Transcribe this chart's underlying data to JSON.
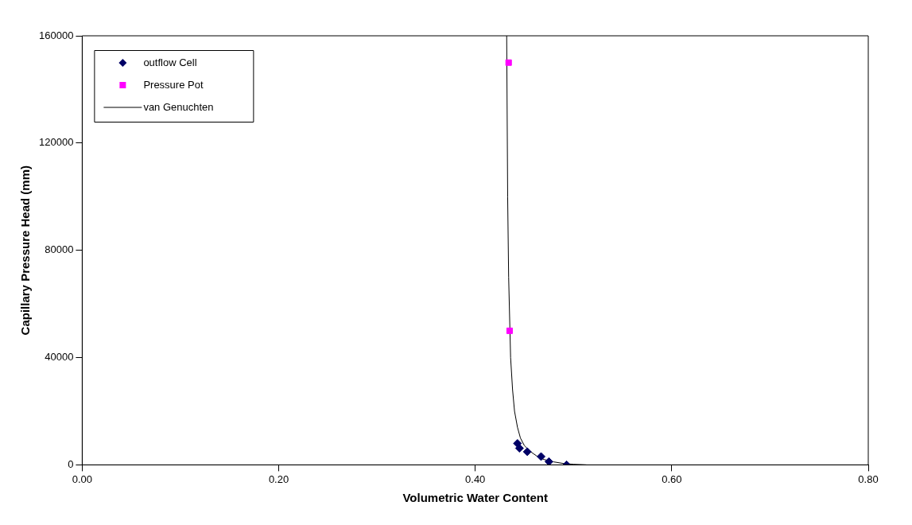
{
  "chart_data": {
    "type": "scatter",
    "xlabel": "Volumetric Water Content",
    "ylabel": "Capillary Pressure Head (mm)",
    "xlim": [
      0,
      0.8
    ],
    "xticks": [
      {
        "value": 0,
        "label": "0.00"
      },
      {
        "value": 0.2,
        "label": "0.20"
      },
      {
        "value": 0.4,
        "label": "0.40"
      },
      {
        "value": 0.6,
        "label": "0.60"
      },
      {
        "value": 0.8,
        "label": "0.80"
      }
    ],
    "ylim": [
      0,
      160000
    ],
    "yticks": [
      0,
      40000,
      80000,
      120000,
      160000
    ],
    "grid": false,
    "legend": "top left",
    "series": [
      {
        "name": "outflow Cell",
        "marker": "diamond",
        "color": "#000066",
        "x": [
          0.443,
          0.445,
          0.453,
          0.467,
          0.475,
          0.493
        ],
        "values": [
          8000,
          6200,
          4900,
          3100,
          1200,
          0
        ]
      },
      {
        "name": "Pressure Pot",
        "marker": "square",
        "color": "#ff00ff",
        "x": [
          0.434,
          0.435
        ],
        "values": [
          150000,
          50000
        ]
      },
      {
        "name": "van Genuchten",
        "type": "line",
        "marker": "none",
        "line_style": "solid",
        "color": "#000000",
        "x": [
          0.432,
          0.433,
          0.434,
          0.436,
          0.438,
          0.44,
          0.443,
          0.446,
          0.45,
          0.456,
          0.463,
          0.47,
          0.48,
          0.49,
          0.5,
          0.513
        ],
        "values": [
          160000,
          100000,
          70000,
          40000,
          28000,
          20000,
          14000,
          10000,
          7200,
          5000,
          3200,
          2000,
          1100,
          500,
          200,
          0
        ]
      }
    ]
  }
}
